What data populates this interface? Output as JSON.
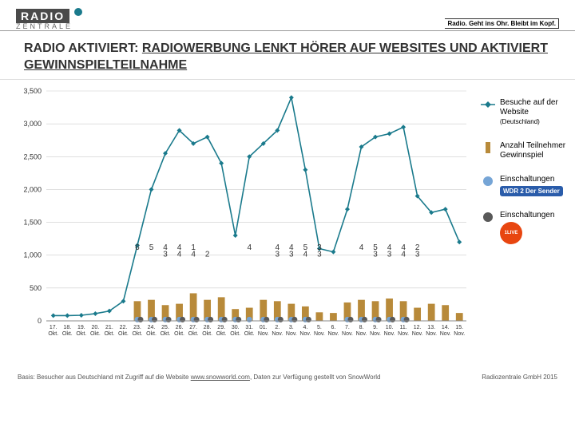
{
  "header": {
    "logo_top": "RADIO",
    "logo_bottom": "ZENTRALE",
    "tagline": "Radio. Geht ins Ohr. Bleibt im Kopf."
  },
  "title_pre": "RADIO AKTIVIERT: ",
  "title_u": "RADIOWERBUNG LENKT HÖRER AUF WEBSITES UND AKTIVIERT GEWINNSPIELTEILNAHME",
  "chart": {
    "ylim": [
      0,
      3500
    ],
    "ytick_step": 500,
    "yticks": [
      "0",
      "500",
      "1,000",
      "1,500",
      "2,000",
      "2,500",
      "3,000",
      "3,500"
    ],
    "x_labels": [
      "17. Okt.",
      "18. Okt.",
      "19. Okt.",
      "20. Okt.",
      "21. Okt.",
      "22. Okt.",
      "23. Okt.",
      "24. Okt.",
      "25. Okt.",
      "26. Okt.",
      "27. Okt.",
      "28. Okt.",
      "29. Okt.",
      "30. Okt.",
      "31. Okt.",
      "01. Nov.",
      "2. Nov.",
      "3. Nov.",
      "4. Nov.",
      "5. Nov.",
      "6. Nov.",
      "7. Nov.",
      "8. Nov.",
      "9. Nov.",
      "10. Nov.",
      "11. Nov.",
      "12. Nov.",
      "13. Nov.",
      "14. Nov.",
      "15. Nov."
    ],
    "colors": {
      "line": "#1a7a8c",
      "line_marker": "#1a7a8c",
      "bar": "#b88a3a",
      "marker_wdr": "#76a5d6",
      "marker_live": "#595959",
      "grid": "#cccccc"
    },
    "line_values": [
      80,
      80,
      85,
      110,
      150,
      300,
      1150,
      2000,
      2550,
      2900,
      2700,
      2800,
      2400,
      1300,
      2500,
      2700,
      2900,
      3400,
      2300,
      1100,
      1050,
      1700,
      2650,
      2800,
      2850,
      2950,
      1900,
      1650,
      1700,
      1200
    ],
    "bar_values": [
      0,
      0,
      0,
      0,
      0,
      0,
      300,
      320,
      240,
      260,
      420,
      320,
      360,
      180,
      200,
      320,
      300,
      260,
      220,
      130,
      120,
      280,
      320,
      300,
      340,
      300,
      200,
      260,
      240,
      120
    ],
    "wdr_idx": [
      6,
      7,
      8,
      9,
      10,
      11,
      12,
      13,
      14,
      15,
      16,
      17,
      18,
      21,
      22,
      23,
      24,
      25
    ],
    "live_idx": [
      6,
      7,
      8,
      9,
      10,
      11,
      12,
      13,
      15,
      16,
      17,
      18,
      21,
      22,
      23,
      24,
      25
    ],
    "annot_rows": [
      {
        "y": 1080,
        "vals": {
          "6": "6",
          "7": "5",
          "8": "4",
          "9": "4",
          "10": "1",
          "14": "4",
          "16": "4",
          "17": "4",
          "18": "5",
          "19": "3",
          "22": "4",
          "23": "5",
          "24": "4",
          "25": "4",
          "26": "2"
        }
      },
      {
        "y": 980,
        "vals": {
          "8": "3",
          "9": "4",
          "10": "4",
          "11": "2",
          "16": "3",
          "17": "3",
          "18": "4",
          "19": "3",
          "23": "3",
          "24": "3",
          "25": "4",
          "26": "3"
        }
      }
    ]
  },
  "legend": {
    "line": "Besuche auf der Website",
    "line_sub": "(Deutschland)",
    "bar": "Anzahl Teilnehmer Gewinnspiel",
    "wdr": "Einschaltungen",
    "wdr_badge": "WDR 2 Der Sender",
    "live": "Einschaltungen",
    "live_badge": "1LIVE"
  },
  "footer": {
    "left_pre": "Basis: Besucher aus Deutschland mit Zugriff auf die Website ",
    "left_link": "www.snowworld.com",
    "left_post": ", Daten zur Verfügung gestellt von SnowWorld",
    "right": "Radiozentrale GmbH 2015"
  }
}
